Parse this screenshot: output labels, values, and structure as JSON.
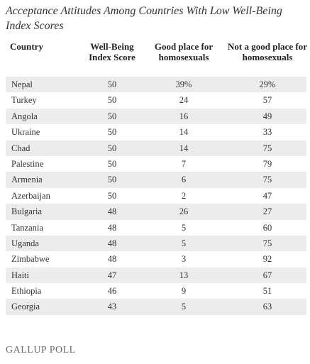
{
  "chart_data": {
    "type": "table",
    "title": "Acceptance Attitudes Among Countries With Low Well-Being Index Scores",
    "columns": [
      "Country",
      "Well-Being Index Score",
      "Good place for homosexuals",
      "Not a good place for homosexuals"
    ],
    "rows": [
      [
        "Nepal",
        "50",
        "39%",
        "29%"
      ],
      [
        "Turkey",
        "50",
        "24",
        "57"
      ],
      [
        "Angola",
        "50",
        "16",
        "49"
      ],
      [
        "Ukraine",
        "50",
        "14",
        "33"
      ],
      [
        "Chad",
        "50",
        "14",
        "75"
      ],
      [
        "Palestine",
        "50",
        "7",
        "79"
      ],
      [
        "Armenia",
        "50",
        "6",
        "75"
      ],
      [
        "Azerbaijan",
        "50",
        "2",
        "47"
      ],
      [
        "Bulgaria",
        "48",
        "26",
        "27"
      ],
      [
        "Tanzania",
        "48",
        "5",
        "60"
      ],
      [
        "Uganda",
        "48",
        "5",
        "75"
      ],
      [
        "Zimbabwe",
        "48",
        "3",
        "92"
      ],
      [
        "Haiti",
        "47",
        "13",
        "67"
      ],
      [
        "Ethiopia",
        "46",
        "9",
        "51"
      ],
      [
        "Georgia",
        "43",
        "5",
        "63"
      ]
    ]
  },
  "footer": {
    "source": "GALLUP POLL"
  },
  "colors": {
    "stripe": "#ececec",
    "text": "#333333",
    "footer": "#6b6b6b"
  }
}
